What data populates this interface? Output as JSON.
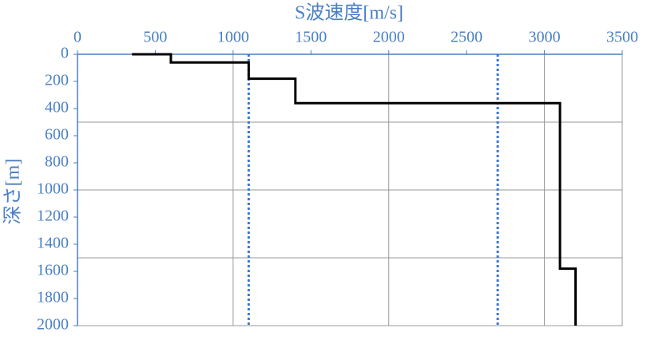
{
  "chart_data": {
    "type": "line",
    "title": "S波速度[m/s]",
    "y_label": "深さ[m]",
    "x": [
      350,
      600,
      600,
      1100,
      1100,
      1400,
      1400,
      3100,
      3100,
      3200,
      3200
    ],
    "series": [
      {
        "color": "#000000",
        "values": [
          0,
          0,
          60,
          60,
          180,
          180,
          360,
          360,
          1580,
          1580,
          2000
        ]
      }
    ],
    "vlines": [
      1100,
      2700
    ],
    "vline_color": "#3a78d0",
    "xlim": [
      0,
      3500
    ],
    "xticks": [
      0,
      500,
      1000,
      1500,
      2000,
      2500,
      3000,
      3500
    ],
    "ylim": [
      0,
      2000
    ],
    "yticks": [
      0,
      200,
      400,
      600,
      800,
      1000,
      1200,
      1400,
      1600,
      1800,
      2000
    ],
    "y_inverted": true,
    "xgrid": [
      1000,
      2000,
      3000
    ],
    "ygrid": [
      500,
      1000,
      1500
    ],
    "text_color": "#4a7fc4"
  }
}
